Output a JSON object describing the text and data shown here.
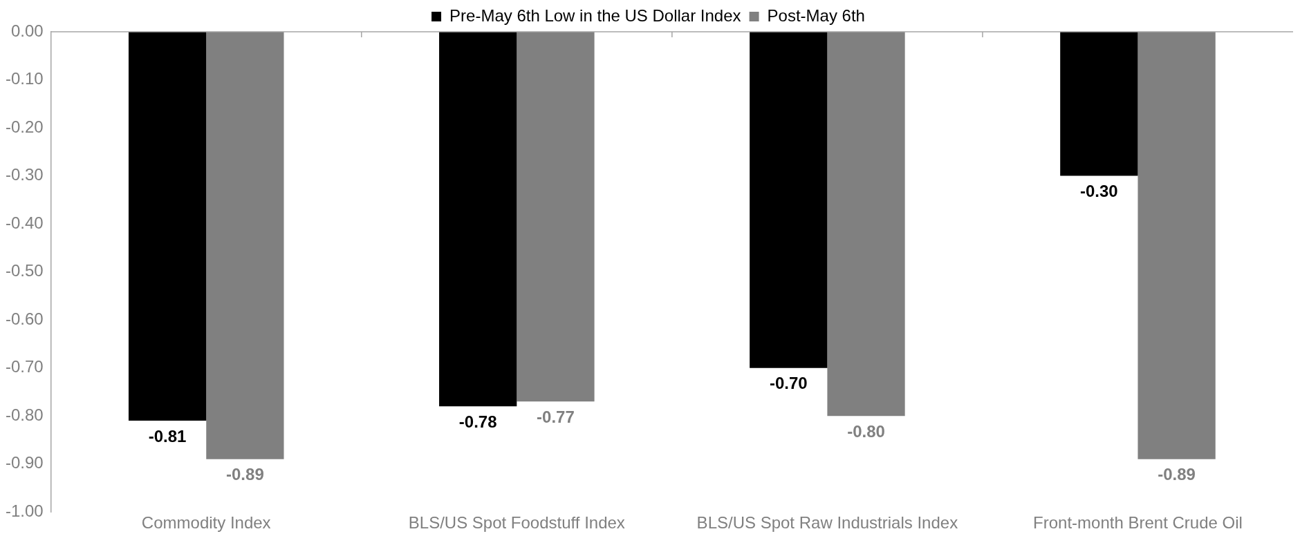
{
  "chart_data": {
    "type": "bar",
    "categories": [
      "Commodity Index",
      "BLS/US Spot Foodstuff Index",
      "BLS/US Spot Raw Industrials Index",
      "Front-month Brent Crude Oil"
    ],
    "series": [
      {
        "name": "Pre-May 6th Low in the US Dollar Index",
        "color": "#000000",
        "values": [
          -0.81,
          -0.78,
          -0.7,
          -0.3
        ],
        "value_labels": [
          "-0.81",
          "-0.78",
          "-0.70",
          "-0.30"
        ]
      },
      {
        "name": "Post-May 6th",
        "color": "#808080",
        "values": [
          -0.89,
          -0.77,
          -0.8,
          -0.89
        ],
        "value_labels": [
          "-0.89",
          "-0.77",
          "-0.80",
          "-0.89"
        ]
      }
    ],
    "ylim": [
      -1,
      0
    ],
    "yticks": [
      {
        "value": 0,
        "label": "0.00"
      },
      {
        "value": -0.1,
        "label": "-0.10"
      },
      {
        "value": -0.2,
        "label": "-0.20"
      },
      {
        "value": -0.3,
        "label": "-0.30"
      },
      {
        "value": -0.4,
        "label": "-0.40"
      },
      {
        "value": -0.5,
        "label": "-0.50"
      },
      {
        "value": -0.6,
        "label": "-0.60"
      },
      {
        "value": -0.7,
        "label": "-0.70"
      },
      {
        "value": -0.8,
        "label": "-0.80"
      },
      {
        "value": -0.9,
        "label": "-0.90"
      },
      {
        "value": -1,
        "label": "-1.00"
      }
    ],
    "grid": false,
    "legend": "top"
  }
}
